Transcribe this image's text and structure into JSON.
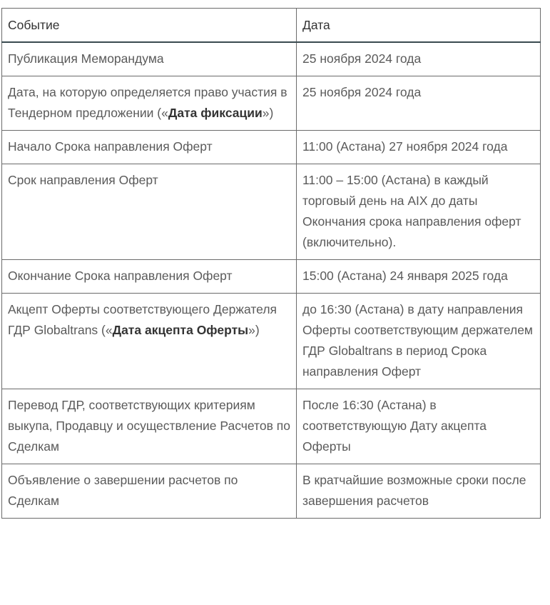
{
  "header": {
    "event": "Событие",
    "date": "Дата"
  },
  "rows": [
    {
      "event": [
        {
          "t": "Публикация Меморандума"
        }
      ],
      "date": [
        {
          "t": "25 ноября 2024 года"
        }
      ]
    },
    {
      "event": [
        {
          "t": "Дата, на которую определяется право участия в Тендерном предложении («"
        },
        {
          "t": "Дата фиксации",
          "b": true
        },
        {
          "t": "»)"
        }
      ],
      "date": [
        {
          "t": "25 ноября 2024 года"
        }
      ]
    },
    {
      "event": [
        {
          "t": "Начало Срока направления Оферт"
        }
      ],
      "date": [
        {
          "t": "11:00 (Астана) 27 ноября 2024 года"
        }
      ]
    },
    {
      "event": [
        {
          "t": "Срок направления Оферт"
        }
      ],
      "date": [
        {
          "t": "11:00 – 15:00 (Астана) в каждый торговый день на AIX до даты Окончания срока направления оферт (включительно)."
        }
      ]
    },
    {
      "event": [
        {
          "t": "Окончание Срока направления Оферт"
        }
      ],
      "date": [
        {
          "t": "15:00 (Астана) 24 января 2025 года"
        }
      ]
    },
    {
      "event": [
        {
          "t": "Акцепт Оферты соответствующего Держателя ГДР Globaltrans («"
        },
        {
          "t": "Дата акцепта Оферты",
          "b": true
        },
        {
          "t": "»)"
        }
      ],
      "date": [
        {
          "t": "до 16:30 (Астана) в дату направления Оферты соответствующим держателем ГДР Globaltrans в период Срока направления Оферт"
        }
      ]
    },
    {
      "event": [
        {
          "t": "Перевод ГДР, соответствующих критериям выкупа, Продавцу и осуществление Расчетов по Сделкам"
        }
      ],
      "date": [
        {
          "t": "После 16:30 (Астана) в соответствующую Дату акцепта Оферты"
        }
      ]
    },
    {
      "event": [
        {
          "t": "Объявление о завершении расчетов по Сделкам"
        }
      ],
      "date": [
        {
          "t": "В кратчайшие возможные сроки после завершения расчетов"
        }
      ]
    }
  ]
}
